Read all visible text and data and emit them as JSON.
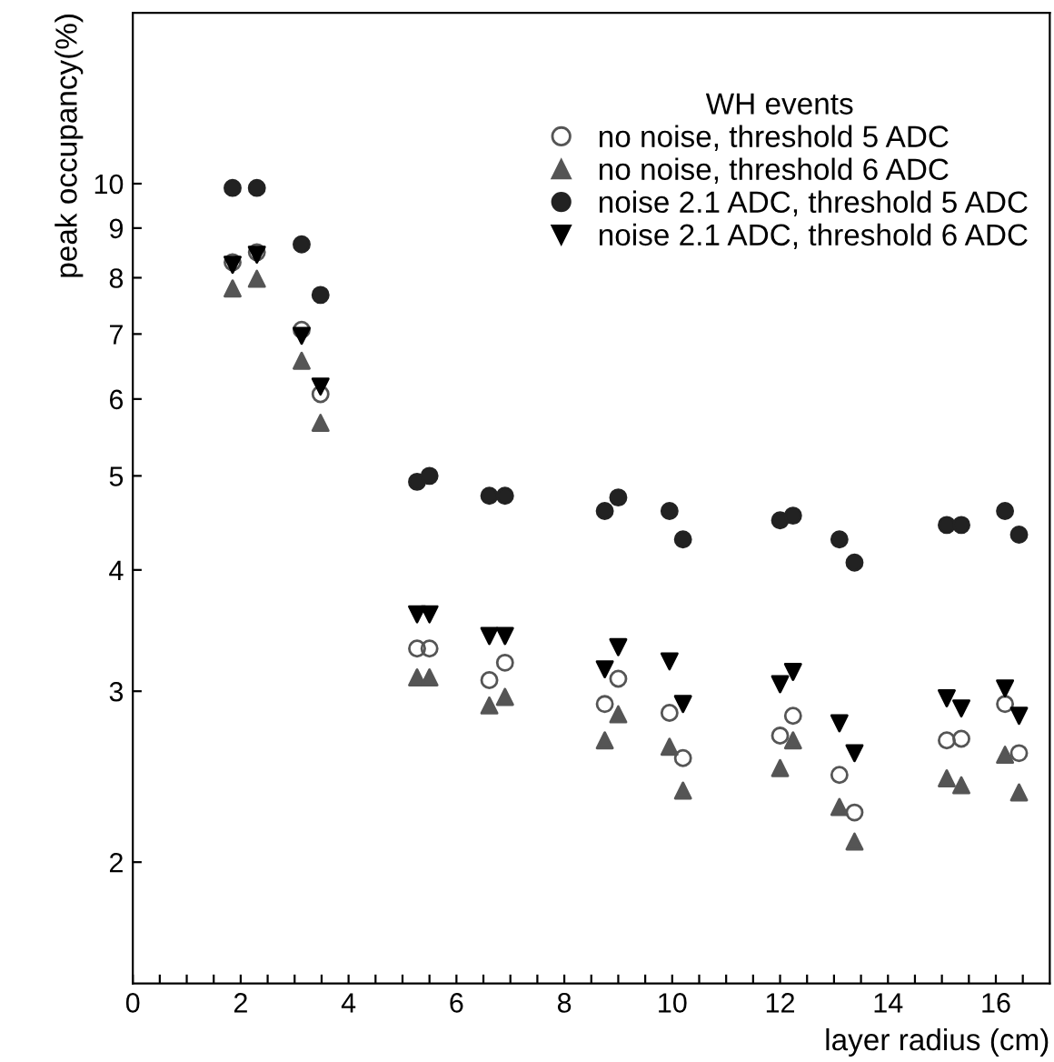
{
  "chart_data": {
    "type": "scatter",
    "xlabel": "layer radius (cm)",
    "ylabel": "peak occupancy(%)",
    "legend_title": "WH events",
    "x": [
      1.85,
      2.3,
      3.13,
      3.48,
      5.27,
      5.5,
      6.61,
      6.9,
      8.75,
      9.0,
      9.95,
      10.2,
      12.0,
      12.24,
      13.1,
      13.38,
      15.09,
      15.36,
      16.17,
      16.43
    ],
    "series": [
      {
        "name": "no noise, threshold 5 ADC",
        "color": "#555555",
        "marker": "open_circle",
        "values": [
          8.3,
          8.5,
          7.07,
          6.07,
          3.32,
          3.32,
          3.08,
          3.21,
          2.91,
          3.09,
          2.85,
          2.56,
          2.7,
          2.83,
          2.46,
          2.25,
          2.67,
          2.68,
          2.91,
          2.59
        ]
      },
      {
        "name": "no noise, threshold 6 ADC",
        "color": "#555555",
        "marker": "triangle",
        "values": [
          7.8,
          7.98,
          6.57,
          5.67,
          3.1,
          3.1,
          2.9,
          2.96,
          2.67,
          2.84,
          2.63,
          2.37,
          2.5,
          2.67,
          2.28,
          2.1,
          2.44,
          2.4,
          2.58,
          2.36
        ]
      },
      {
        "name": "noise 2.1 ADC, threshold 5 ADC",
        "color": "#222222",
        "marker": "circle",
        "values": [
          9.9,
          9.9,
          8.66,
          7.68,
          4.93,
          5.0,
          4.77,
          4.77,
          4.6,
          4.75,
          4.6,
          4.3,
          4.5,
          4.55,
          4.3,
          4.07,
          4.45,
          4.45,
          4.6,
          4.35
        ]
      },
      {
        "name": "noise 2.1 ADC, threshold 6 ADC",
        "color": "#000000",
        "marker": "triangle_down",
        "values": [
          8.25,
          8.45,
          6.97,
          6.18,
          3.6,
          3.6,
          3.42,
          3.42,
          3.16,
          3.33,
          3.22,
          2.91,
          3.05,
          3.14,
          2.78,
          2.59,
          2.95,
          2.88,
          3.02,
          2.83
        ]
      }
    ],
    "log": "y",
    "xlim": [
      0,
      17
    ],
    "ylim": [
      1.5,
      15
    ],
    "xticks": [
      0,
      {
        "value": 0.5,
        "label": null
      },
      {
        "value": 1,
        "label": null
      },
      {
        "value": 1.5,
        "label": null
      },
      2,
      {
        "value": 2.5,
        "label": null
      },
      {
        "value": 3,
        "label": null
      },
      {
        "value": 3.5,
        "label": null
      },
      4,
      {
        "value": 4.5,
        "label": null
      },
      {
        "value": 5,
        "label": null
      },
      {
        "value": 5.5,
        "label": null
      },
      6,
      {
        "value": 6.5,
        "label": null
      },
      {
        "value": 7,
        "label": null
      },
      {
        "value": 7.5,
        "label": null
      },
      8,
      {
        "value": 8.5,
        "label": null
      },
      {
        "value": 9,
        "label": null
      },
      {
        "value": 9.5,
        "label": null
      },
      10,
      {
        "value": 10.5,
        "label": null
      },
      {
        "value": 11,
        "label": null
      },
      {
        "value": 11.5,
        "label": null
      },
      12,
      {
        "value": 12.5,
        "label": null
      },
      {
        "value": 13,
        "label": null
      },
      {
        "value": 13.5,
        "label": null
      },
      14,
      {
        "value": 14.5,
        "label": null
      },
      {
        "value": 15,
        "label": null
      },
      {
        "value": 15.5,
        "label": null
      },
      16,
      {
        "value": 16.5,
        "label": null
      }
    ],
    "yticks": [
      2,
      3,
      4,
      5,
      6,
      7,
      8,
      9,
      10
    ],
    "grid": false,
    "legend": "top right"
  }
}
